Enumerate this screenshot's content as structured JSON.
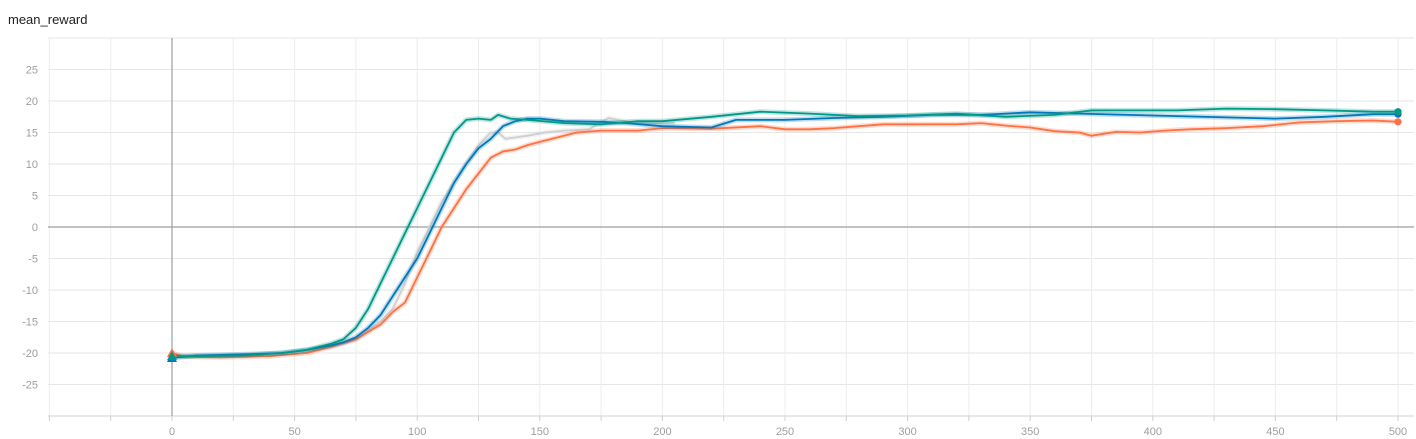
{
  "chart_data": {
    "type": "line",
    "title": "mean_reward",
    "xlim": [
      -50,
      505
    ],
    "ylim": [
      -30,
      30
    ],
    "x_ticks": [
      0,
      50,
      100,
      150,
      200,
      250,
      300,
      350,
      400,
      450,
      500
    ],
    "y_ticks": [
      -25,
      -20,
      -15,
      -10,
      -5,
      0,
      5,
      10,
      15,
      20,
      25
    ],
    "grid": true,
    "zero_axes": true,
    "series": [
      {
        "color": "#cfcfcf",
        "points": [
          [
            0,
            -20.5
          ],
          [
            20,
            -20.5
          ],
          [
            40,
            -20.1
          ],
          [
            55,
            -19.6
          ],
          [
            65,
            -19
          ],
          [
            75,
            -18
          ],
          [
            85,
            -15
          ],
          [
            90,
            -13
          ],
          [
            95,
            -9
          ],
          [
            100,
            -4
          ],
          [
            105,
            0
          ],
          [
            110,
            4
          ],
          [
            115,
            7
          ],
          [
            120,
            10
          ],
          [
            125,
            13
          ],
          [
            130,
            15
          ],
          [
            133,
            15
          ],
          [
            136,
            14
          ],
          [
            145,
            14.5
          ],
          [
            152,
            15
          ],
          [
            160,
            15.3
          ],
          [
            170,
            15.5
          ],
          [
            178,
            17.3
          ],
          [
            182,
            17
          ],
          [
            190,
            16.5
          ],
          [
            200,
            16.5
          ],
          [
            205,
            16.5
          ]
        ]
      },
      {
        "color": "#ff7043",
        "points": [
          [
            0,
            -20
          ],
          [
            5,
            -20.6
          ],
          [
            20,
            -20.7
          ],
          [
            40,
            -20.5
          ],
          [
            55,
            -20
          ],
          [
            65,
            -19
          ],
          [
            75,
            -17.8
          ],
          [
            85,
            -15.5
          ],
          [
            90,
            -13.5
          ],
          [
            95,
            -12
          ],
          [
            100,
            -8
          ],
          [
            105,
            -4
          ],
          [
            110,
            0
          ],
          [
            115,
            3
          ],
          [
            120,
            6
          ],
          [
            125,
            8.5
          ],
          [
            130,
            11
          ],
          [
            135,
            12
          ],
          [
            140,
            12.3
          ],
          [
            145,
            13
          ],
          [
            150,
            13.5
          ],
          [
            155,
            14
          ],
          [
            165,
            15
          ],
          [
            175,
            15.3
          ],
          [
            190,
            15.3
          ],
          [
            200,
            15.7
          ],
          [
            220,
            15.6
          ],
          [
            240,
            16
          ],
          [
            250,
            15.5
          ],
          [
            260,
            15.5
          ],
          [
            270,
            15.7
          ],
          [
            280,
            16
          ],
          [
            290,
            16.3
          ],
          [
            300,
            16.3
          ],
          [
            320,
            16.3
          ],
          [
            330,
            16.5
          ],
          [
            340,
            16.1
          ],
          [
            350,
            15.8
          ],
          [
            360,
            15.2
          ],
          [
            370,
            15
          ],
          [
            375,
            14.5
          ],
          [
            385,
            15.1
          ],
          [
            395,
            15
          ],
          [
            405,
            15.3
          ],
          [
            415,
            15.5
          ],
          [
            430,
            15.7
          ],
          [
            445,
            16
          ],
          [
            460,
            16.6
          ],
          [
            475,
            16.8
          ],
          [
            490,
            16.9
          ],
          [
            500,
            16.7
          ]
        ]
      },
      {
        "color": "#0077bb",
        "points": [
          [
            0,
            -20.8
          ],
          [
            10,
            -20.4
          ],
          [
            30,
            -20.2
          ],
          [
            45,
            -20
          ],
          [
            55,
            -19.5
          ],
          [
            65,
            -18.8
          ],
          [
            70,
            -18.3
          ],
          [
            75,
            -17.5
          ],
          [
            80,
            -16
          ],
          [
            85,
            -14
          ],
          [
            90,
            -11
          ],
          [
            95,
            -8
          ],
          [
            100,
            -5
          ],
          [
            105,
            -1
          ],
          [
            110,
            3
          ],
          [
            115,
            7
          ],
          [
            120,
            10
          ],
          [
            125,
            12.5
          ],
          [
            130,
            14
          ],
          [
            135,
            16
          ],
          [
            140,
            16.8
          ],
          [
            145,
            17.2
          ],
          [
            150,
            17.2
          ],
          [
            160,
            16.8
          ],
          [
            175,
            16.7
          ],
          [
            185,
            16.5
          ],
          [
            200,
            16
          ],
          [
            220,
            15.8
          ],
          [
            230,
            17
          ],
          [
            250,
            17
          ],
          [
            270,
            17.3
          ],
          [
            290,
            17.5
          ],
          [
            310,
            17.8
          ],
          [
            330,
            17.8
          ],
          [
            350,
            18.2
          ],
          [
            370,
            18
          ],
          [
            390,
            17.8
          ],
          [
            410,
            17.6
          ],
          [
            430,
            17.4
          ],
          [
            450,
            17.2
          ],
          [
            470,
            17.5
          ],
          [
            490,
            17.9
          ],
          [
            500,
            17.9
          ]
        ]
      },
      {
        "color": "#009988",
        "points": [
          [
            0,
            -20.5
          ],
          [
            10,
            -20.5
          ],
          [
            30,
            -20.4
          ],
          [
            45,
            -20
          ],
          [
            55,
            -19.5
          ],
          [
            65,
            -18.5
          ],
          [
            70,
            -17.8
          ],
          [
            75,
            -16
          ],
          [
            80,
            -13
          ],
          [
            85,
            -9
          ],
          [
            90,
            -5
          ],
          [
            95,
            -1
          ],
          [
            100,
            3
          ],
          [
            105,
            7
          ],
          [
            110,
            11
          ],
          [
            115,
            15
          ],
          [
            120,
            17
          ],
          [
            125,
            17.2
          ],
          [
            130,
            17
          ],
          [
            133,
            17.8
          ],
          [
            138,
            17.2
          ],
          [
            145,
            17
          ],
          [
            160,
            16.5
          ],
          [
            175,
            16.3
          ],
          [
            190,
            16.8
          ],
          [
            200,
            16.8
          ],
          [
            220,
            17.5
          ],
          [
            240,
            18.3
          ],
          [
            260,
            18
          ],
          [
            280,
            17.6
          ],
          [
            300,
            17.7
          ],
          [
            320,
            18
          ],
          [
            340,
            17.5
          ],
          [
            360,
            17.8
          ],
          [
            375,
            18.5
          ],
          [
            390,
            18.5
          ],
          [
            410,
            18.5
          ],
          [
            430,
            18.8
          ],
          [
            450,
            18.7
          ],
          [
            470,
            18.5
          ],
          [
            490,
            18.3
          ],
          [
            500,
            18.3
          ]
        ]
      }
    ]
  }
}
